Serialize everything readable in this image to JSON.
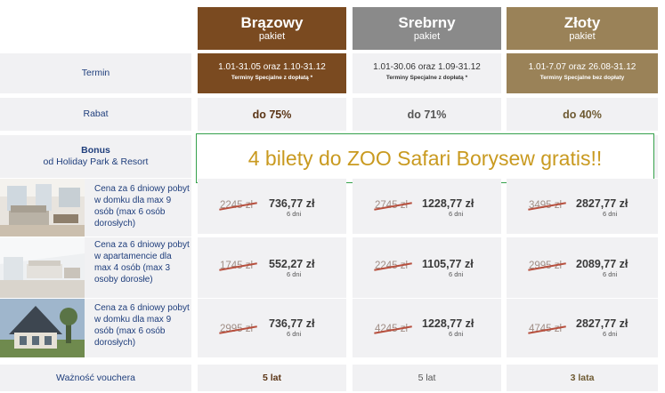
{
  "packages": [
    {
      "name": "Brązowy",
      "sub": "pakiet",
      "color": "#7a4a20"
    },
    {
      "name": "Srebrny",
      "sub": "pakiet",
      "color": "#8a8a8a"
    },
    {
      "name": "Złoty",
      "sub": "pakiet",
      "color": "#9a8258"
    }
  ],
  "rows": {
    "termin_label": "Termin",
    "rabat_label": "Rabat",
    "bonus_label": "Bonus",
    "bonus_sub": "od Holiday Park & Resort",
    "voucher_label": "Ważność vouchera"
  },
  "terms": [
    {
      "range": "1.01-31.05 oraz 1.10-31.12",
      "note": "Terminy Specjalne z dopłatą *"
    },
    {
      "range": "1.01-30.06 oraz 1.09-31.12",
      "note": "Terminy Specjalne z dopłatą *"
    },
    {
      "range": "1.01-7.07 oraz 26.08-31.12",
      "note": "Terminy Specjalne bez dopłaty"
    }
  ],
  "discounts": [
    "do 75%",
    "do 71%",
    "do 40%"
  ],
  "bonus_banner": "4 bilety do ZOO Safari Borysew gratis!!",
  "offers": [
    {
      "description": "Cena za 6 dniowy pobyt w domku dla max 9 osób (max 6 osób dorosłych)",
      "image": "living-room-photo",
      "prices": [
        {
          "old": "2245 zł",
          "new": "736,77 zł",
          "days": "6 dni"
        },
        {
          "old": "2745 zł",
          "new": "1228,77 zł",
          "days": "6 dni"
        },
        {
          "old": "3495 zł",
          "new": "2827,77 zł",
          "days": "6 dni"
        }
      ]
    },
    {
      "description": "Cena za 6 dniowy pobyt w apartamencie dla max 4 osób (max 3 osoby dorosłe)",
      "image": "apartment-photo",
      "prices": [
        {
          "old": "1745 zł",
          "new": "552,27 zł",
          "days": "6 dni"
        },
        {
          "old": "2245 zł",
          "new": "1105,77 zł",
          "days": "6 dni"
        },
        {
          "old": "2995 zł",
          "new": "2089,77 zł",
          "days": "6 dni"
        }
      ]
    },
    {
      "description": "Cena za 6 dniowy pobyt w domku dla max 9 osób (max 6 osób dorosłych)",
      "image": "house-exterior-photo",
      "prices": [
        {
          "old": "2995 zł",
          "new": "736,77 zł",
          "days": "6 dni"
        },
        {
          "old": "4245 zł",
          "new": "1228,77 zł",
          "days": "6 dni"
        },
        {
          "old": "4745 zł",
          "new": "2827,77 zł",
          "days": "6 dni"
        }
      ]
    }
  ],
  "validity": [
    "5 lat",
    "5 lat",
    "3 lata"
  ],
  "colors": {
    "label_blue": "#1f3e7c",
    "banner_green": "#35a14b",
    "banner_text": "#c99a20",
    "brown_text": "#5a3415",
    "silver_text": "#555555",
    "gold_text": "#6e5a32"
  }
}
